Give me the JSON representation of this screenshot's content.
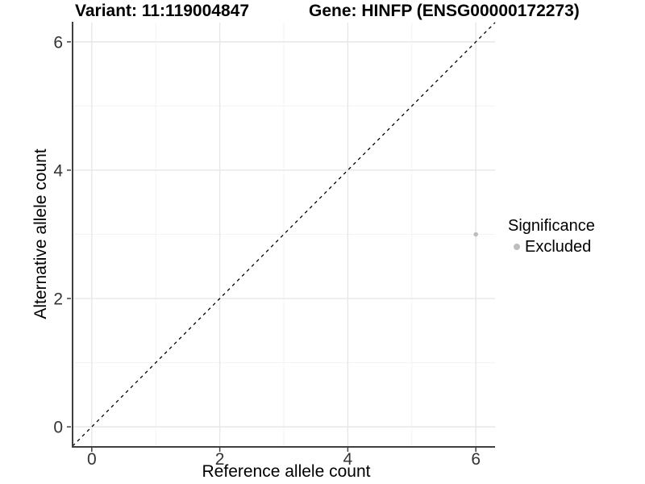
{
  "titles": {
    "variant": "Variant: 11:119004847",
    "gene": "Gene: HINFP (ENSG00000172273)"
  },
  "legend": {
    "title": "Significance",
    "items": [
      {
        "label": "Excluded",
        "color": "#bdbdbd"
      }
    ]
  },
  "chart_data": {
    "type": "scatter",
    "title": "Variant: 11:119004847    Gene: HINFP (ENSG00000172273)",
    "xlabel": "Reference allele count",
    "ylabel": "Alternative allele count",
    "xlim": [
      -0.3,
      6.3
    ],
    "ylim": [
      -0.3,
      6.3
    ],
    "xticks": [
      0,
      2,
      4,
      6
    ],
    "yticks": [
      0,
      2,
      4,
      6
    ],
    "xticks_minor": [
      1,
      3,
      5
    ],
    "yticks_minor": [
      1,
      3,
      5
    ],
    "grid": true,
    "legend_position": "right",
    "series": [
      {
        "name": "Excluded",
        "color": "#bdbdbd",
        "point_radius": 2.8,
        "points": [
          [
            6,
            3
          ]
        ]
      }
    ],
    "identity_line": {
      "style": "dashed",
      "from": [
        -0.3,
        -0.3
      ],
      "to": [
        6.3,
        6.3
      ],
      "color": "#000000"
    }
  },
  "colors": {
    "background": "#ffffff",
    "grid_major": "#e7e7e7",
    "grid_minor": "#f3f3f3",
    "axis_line": "#404040",
    "tick_mark": "#404040",
    "tick_text": "#333333",
    "point": "#bdbdbd"
  }
}
